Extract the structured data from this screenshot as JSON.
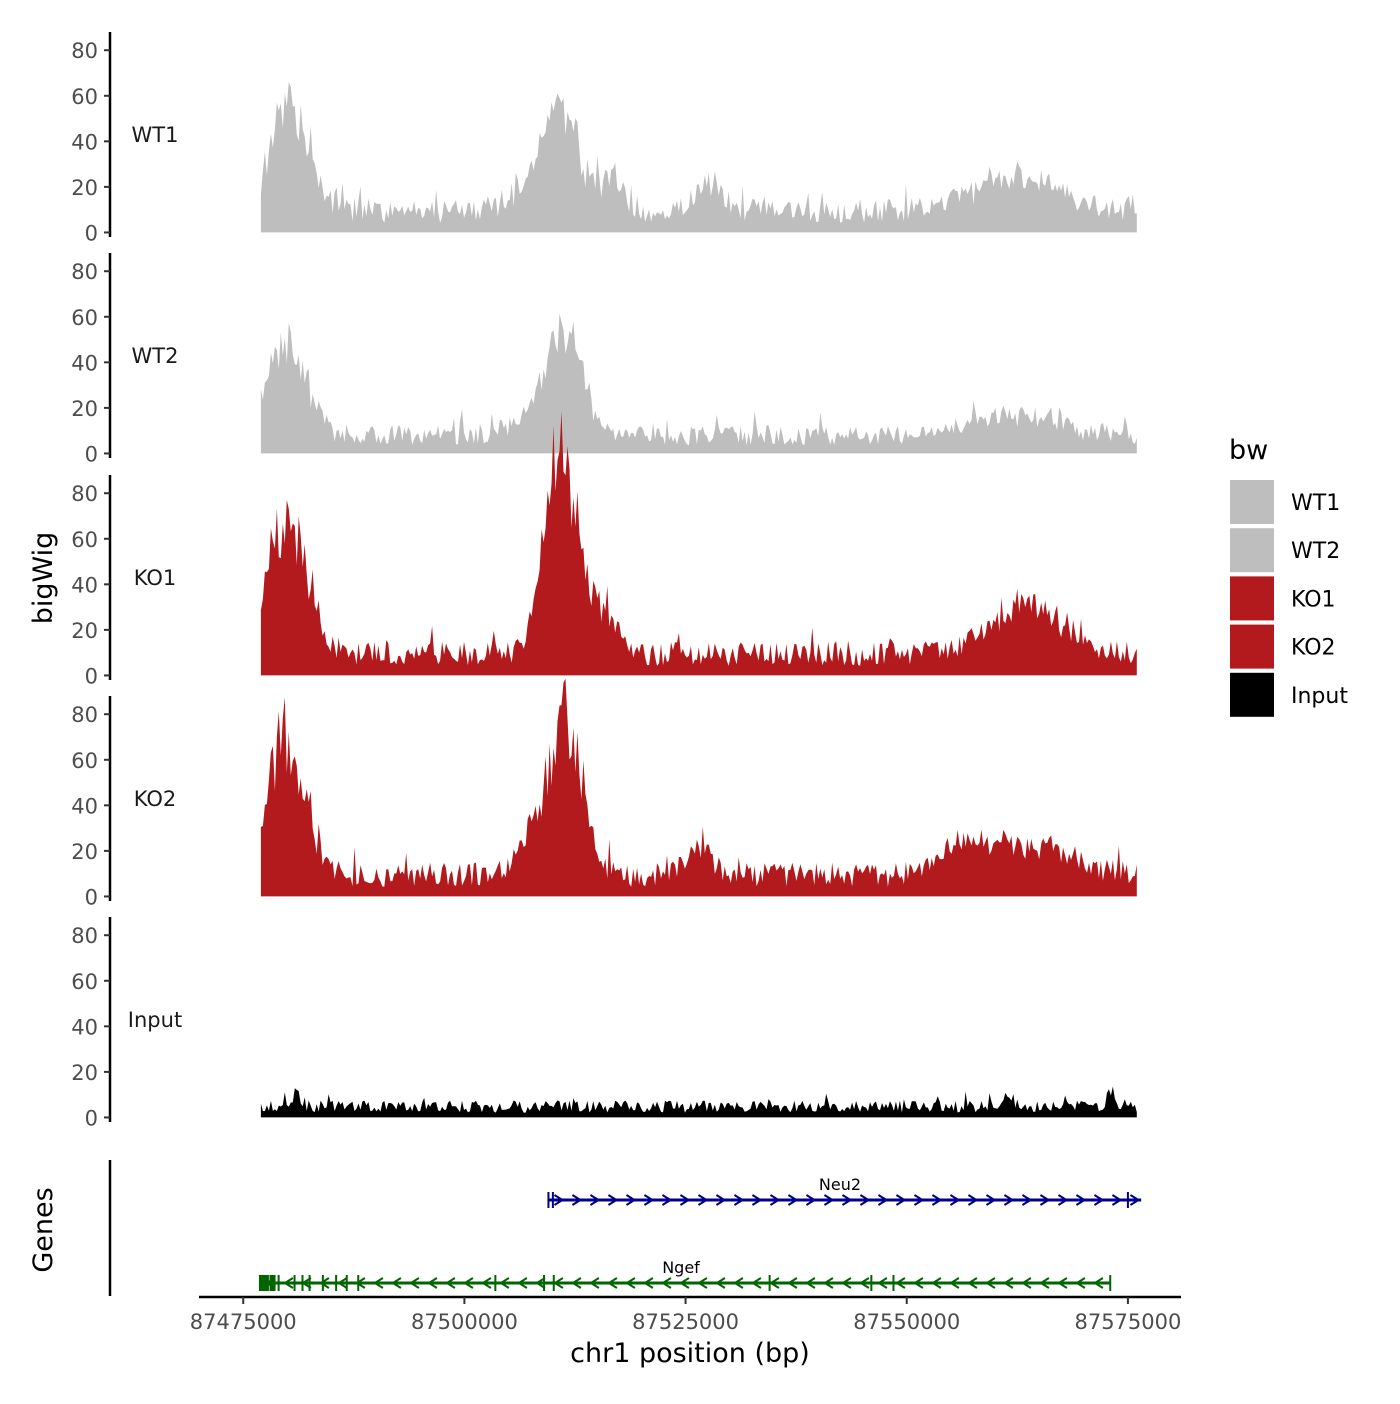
{
  "chart_data": {
    "type": "area",
    "ylabel": "bigWig",
    "genes_label": "Genes",
    "xlabel": "chr1 position (bp)",
    "xlim": [
      87470000,
      87581000
    ],
    "x_range": [
      87477000,
      87576000
    ],
    "x_ticks": [
      {
        "value": 87475000,
        "label": "87475000"
      },
      {
        "value": 87500000,
        "label": "87500000"
      },
      {
        "value": 87525000,
        "label": "87525000"
      },
      {
        "value": 87550000,
        "label": "87550000"
      },
      {
        "value": 87575000,
        "label": "87575000"
      }
    ],
    "y_ticks": [
      {
        "value": 0,
        "label": "0"
      },
      {
        "value": 20,
        "label": "20"
      },
      {
        "value": 40,
        "label": "40"
      },
      {
        "value": 60,
        "label": "60"
      },
      {
        "value": 80,
        "label": "80"
      }
    ],
    "ylim": [
      -2,
      88
    ],
    "legend": {
      "title": "bw",
      "position": "right",
      "entries": [
        {
          "label": "WT1",
          "color": "#bebebe"
        },
        {
          "label": "WT2",
          "color": "#bebebe"
        },
        {
          "label": "KO1",
          "color": "#b21a1e"
        },
        {
          "label": "KO2",
          "color": "#b21a1e"
        },
        {
          "label": "Input",
          "color": "#000000"
        }
      ]
    },
    "series": [
      {
        "name": "WT1",
        "color": "#bebebe",
        "base": 12,
        "peaks": [
          {
            "pos": 87480200,
            "height": 50,
            "width": 2200
          },
          {
            "pos": 87510800,
            "height": 52,
            "width": 1800
          },
          {
            "pos": 87507500,
            "height": 10,
            "width": 2500
          },
          {
            "pos": 87516500,
            "height": 14,
            "width": 1500
          },
          {
            "pos": 87527500,
            "height": 14,
            "width": 1500
          },
          {
            "pos": 87560000,
            "height": 10,
            "width": 4500
          },
          {
            "pos": 87565000,
            "height": 8,
            "width": 4000
          }
        ]
      },
      {
        "name": "WT2",
        "color": "#bebebe",
        "base": 10,
        "peaks": [
          {
            "pos": 87480000,
            "height": 42,
            "width": 2200
          },
          {
            "pos": 87510700,
            "height": 34,
            "width": 1800
          },
          {
            "pos": 87512500,
            "height": 20,
            "width": 1500
          },
          {
            "pos": 87507500,
            "height": 8,
            "width": 2500
          },
          {
            "pos": 87562000,
            "height": 10,
            "width": 5000
          }
        ]
      },
      {
        "name": "KO1",
        "color": "#b21a1e",
        "base": 12,
        "peaks": [
          {
            "pos": 87480000,
            "height": 62,
            "width": 2200
          },
          {
            "pos": 87511000,
            "height": 72,
            "width": 1600
          },
          {
            "pos": 87509500,
            "height": 25,
            "width": 1400
          },
          {
            "pos": 87513500,
            "height": 22,
            "width": 1500
          },
          {
            "pos": 87516000,
            "height": 12,
            "width": 1500
          },
          {
            "pos": 87562000,
            "height": 16,
            "width": 3500
          },
          {
            "pos": 87566000,
            "height": 10,
            "width": 3500
          }
        ]
      },
      {
        "name": "KO2",
        "color": "#b21a1e",
        "base": 12,
        "peaks": [
          {
            "pos": 87479800,
            "height": 62,
            "width": 2200
          },
          {
            "pos": 87511000,
            "height": 60,
            "width": 1600
          },
          {
            "pos": 87507500,
            "height": 18,
            "width": 1400
          },
          {
            "pos": 87513000,
            "height": 24,
            "width": 1500
          },
          {
            "pos": 87526500,
            "height": 14,
            "width": 1500
          },
          {
            "pos": 87557000,
            "height": 12,
            "width": 2500
          },
          {
            "pos": 87564000,
            "height": 14,
            "width": 4500
          }
        ]
      },
      {
        "name": "Input",
        "color": "#000000",
        "base": 6,
        "peaks": [
          {
            "pos": 87481000,
            "height": 5,
            "width": 600
          },
          {
            "pos": 87561500,
            "height": 5,
            "width": 600
          },
          {
            "pos": 87573000,
            "height": 9,
            "width": 400
          }
        ]
      }
    ],
    "genes": [
      {
        "name": "Neu2",
        "start": 87509500,
        "end": 87576500,
        "strand": "+",
        "color": "#00008b",
        "exons": [
          87509500,
          87510000,
          87575000
        ]
      },
      {
        "name": "Ngef",
        "start": 87477000,
        "end": 87573000,
        "strand": "-",
        "color": "#006400",
        "exons": [
          87477300,
          87478200,
          87479000,
          87480800,
          87481700,
          87482500,
          87484000,
          87485500,
          87486700,
          87488000,
          87503500,
          87509000,
          87510100,
          87534500,
          87546000,
          87548500,
          87573000
        ]
      }
    ]
  }
}
